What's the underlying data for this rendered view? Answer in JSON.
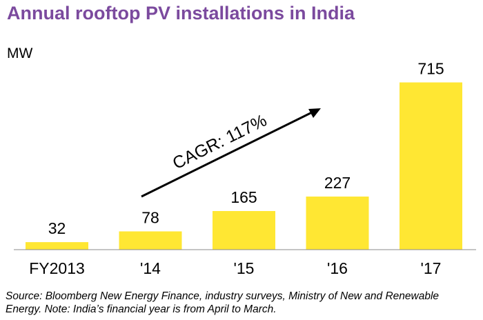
{
  "chart_data": {
    "type": "bar",
    "title": "Annual rooftop PV installations in India",
    "ylabel": "MW",
    "xlabel": "",
    "categories": [
      "FY2013",
      "'14",
      "'15",
      "'16",
      "'17"
    ],
    "values": [
      32,
      78,
      165,
      227,
      715
    ],
    "data_labels": [
      "32",
      "78",
      "165",
      "227",
      "715"
    ],
    "ylim": [
      0,
      750
    ],
    "grid": false,
    "legend": "none",
    "bar_color": "#ffe733",
    "annotation": "CAGR: 117%"
  },
  "source_note": "Source: Bloomberg New Energy Finance, industry surveys, Ministry of New and Renewable Energy. Note: India’s financial year is from April to March.",
  "title_color": "#7b4a9e"
}
